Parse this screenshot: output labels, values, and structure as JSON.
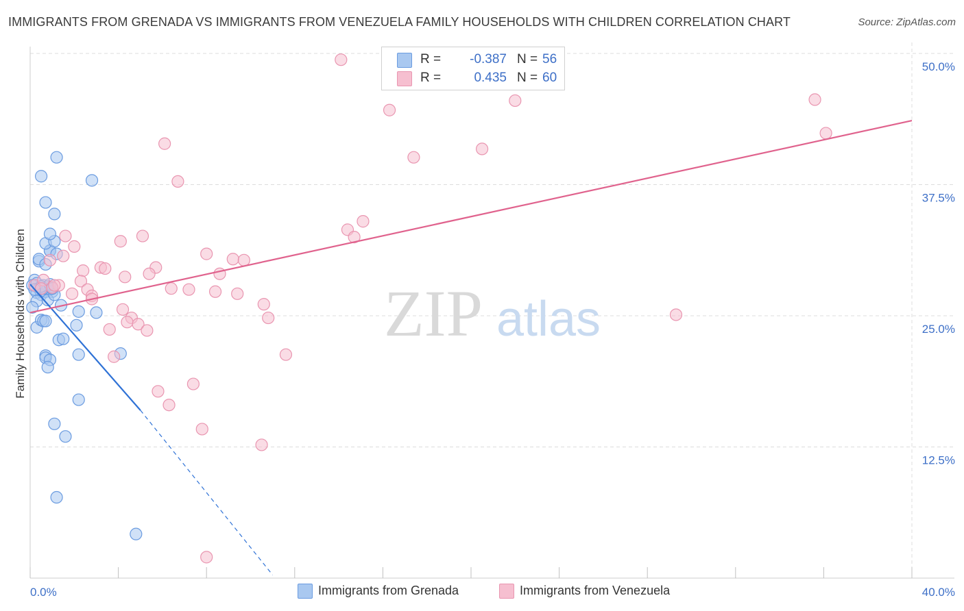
{
  "title": "IMMIGRANTS FROM GRENADA VS IMMIGRANTS FROM VENEZUELA FAMILY HOUSEHOLDS WITH CHILDREN CORRELATION CHART",
  "source": "Source: ZipAtlas.com",
  "watermark": {
    "zip": "ZIP",
    "atlas": "atlas"
  },
  "legend": {
    "r_label": "R =",
    "n_label": "N =",
    "series": [
      {
        "name": "Immigrants from Grenada",
        "r": "-0.387",
        "n": "56",
        "color": "#a9c8f0",
        "stroke": "#6a9be0",
        "line": "#2f72d6"
      },
      {
        "name": "Immigrants from Venezuela",
        "r": "0.435",
        "n": "60",
        "color": "#f6bfd0",
        "stroke": "#e995b0",
        "line": "#e0628d"
      }
    ]
  },
  "colors": {
    "tick_label": "#3d6fc7",
    "grid": "#dcdcdc",
    "axis": "#cccccc"
  },
  "chart_data": {
    "type": "scatter",
    "title": "IMMIGRANTS FROM GRENADA VS IMMIGRANTS FROM VENEZUELA FAMILY HOUSEHOLDS WITH CHILDREN CORRELATION CHART",
    "xlabel": "",
    "ylabel": "Family Households with Children",
    "xlim": [
      0,
      40
    ],
    "ylim": [
      0,
      50
    ],
    "x_tick_labels": [
      {
        "value": 0,
        "label": "0.0%"
      },
      {
        "value": 40,
        "label": "40.0%"
      }
    ],
    "y_tick_labels": [
      {
        "value": 12.5,
        "label": "12.5%"
      },
      {
        "value": 25,
        "label": "25.0%"
      },
      {
        "value": 37.5,
        "label": "37.5%"
      },
      {
        "value": 50,
        "label": "50.0%"
      }
    ],
    "x_minor_ticks": [
      0,
      4,
      8,
      12,
      16,
      20,
      24,
      28,
      32,
      36,
      40
    ],
    "series": [
      {
        "name": "Immigrants from Grenada",
        "points": [
          [
            0.2,
            28.4
          ],
          [
            0.3,
            27.2
          ],
          [
            0.1,
            27.9
          ],
          [
            0.3,
            28.1
          ],
          [
            0.4,
            27.6
          ],
          [
            0.5,
            27.3
          ],
          [
            0.6,
            27.9
          ],
          [
            0.5,
            27.0
          ],
          [
            0.7,
            27.3
          ],
          [
            0.8,
            27.8
          ],
          [
            0.9,
            27.5
          ],
          [
            1.0,
            27.3
          ],
          [
            0.3,
            26.4
          ],
          [
            0.1,
            25.8
          ],
          [
            0.3,
            23.9
          ],
          [
            0.5,
            24.6
          ],
          [
            0.6,
            24.5
          ],
          [
            0.7,
            24.5
          ],
          [
            0.8,
            26.5
          ],
          [
            1.4,
            26.0
          ],
          [
            0.4,
            30.2
          ],
          [
            0.4,
            30.4
          ],
          [
            0.7,
            29.9
          ],
          [
            0.9,
            31.2
          ],
          [
            0.9,
            31.2
          ],
          [
            0.7,
            31.9
          ],
          [
            1.1,
            32.1
          ],
          [
            0.9,
            32.8
          ],
          [
            1.2,
            30.9
          ],
          [
            0.5,
            38.3
          ],
          [
            0.7,
            35.8
          ],
          [
            1.1,
            34.7
          ],
          [
            1.2,
            40.1
          ],
          [
            2.8,
            37.9
          ],
          [
            1.3,
            22.7
          ],
          [
            1.5,
            22.8
          ],
          [
            0.7,
            21.2
          ],
          [
            0.7,
            21.0
          ],
          [
            0.9,
            20.8
          ],
          [
            0.8,
            20.1
          ],
          [
            2.1,
            24.1
          ],
          [
            2.2,
            25.4
          ],
          [
            3.0,
            25.3
          ],
          [
            2.2,
            21.3
          ],
          [
            4.1,
            21.4
          ],
          [
            2.2,
            17.0
          ],
          [
            1.1,
            14.7
          ],
          [
            1.6,
            13.5
          ],
          [
            1.2,
            7.7
          ],
          [
            4.8,
            4.2
          ],
          [
            1.1,
            27.0
          ],
          [
            0.6,
            27.6
          ],
          [
            0.5,
            27.8
          ],
          [
            0.9,
            28.0
          ],
          [
            0.2,
            27.5
          ],
          [
            1.0,
            27.6
          ]
        ]
      },
      {
        "name": "Immigrants from Venezuela",
        "points": [
          [
            14.1,
            49.4
          ],
          [
            16.3,
            44.6
          ],
          [
            17.4,
            40.1
          ],
          [
            20.5,
            40.9
          ],
          [
            22.0,
            45.5
          ],
          [
            35.6,
            45.6
          ],
          [
            36.1,
            42.4
          ],
          [
            6.1,
            41.4
          ],
          [
            6.7,
            37.8
          ],
          [
            15.1,
            34.0
          ],
          [
            14.4,
            33.2
          ],
          [
            14.7,
            32.5
          ],
          [
            1.6,
            32.6
          ],
          [
            2.0,
            31.6
          ],
          [
            1.5,
            30.7
          ],
          [
            0.9,
            30.3
          ],
          [
            5.1,
            32.6
          ],
          [
            4.1,
            32.1
          ],
          [
            8.0,
            30.9
          ],
          [
            9.2,
            30.4
          ],
          [
            9.7,
            30.3
          ],
          [
            3.2,
            29.6
          ],
          [
            3.4,
            29.5
          ],
          [
            2.4,
            29.3
          ],
          [
            5.7,
            29.6
          ],
          [
            5.4,
            29.0
          ],
          [
            8.6,
            29.0
          ],
          [
            4.3,
            28.7
          ],
          [
            2.3,
            28.3
          ],
          [
            1.3,
            27.9
          ],
          [
            1.0,
            27.7
          ],
          [
            0.2,
            27.9
          ],
          [
            2.6,
            27.5
          ],
          [
            6.4,
            27.6
          ],
          [
            7.2,
            27.5
          ],
          [
            8.4,
            27.3
          ],
          [
            9.4,
            27.1
          ],
          [
            2.8,
            26.9
          ],
          [
            1.9,
            27.1
          ],
          [
            2.8,
            26.6
          ],
          [
            4.2,
            25.6
          ],
          [
            4.6,
            24.8
          ],
          [
            4.4,
            24.4
          ],
          [
            3.6,
            23.7
          ],
          [
            4.9,
            24.2
          ],
          [
            5.3,
            23.6
          ],
          [
            10.6,
            26.1
          ],
          [
            10.8,
            24.8
          ],
          [
            11.6,
            21.3
          ],
          [
            29.3,
            25.1
          ],
          [
            3.8,
            21.1
          ],
          [
            5.8,
            17.8
          ],
          [
            6.3,
            16.5
          ],
          [
            7.4,
            18.5
          ],
          [
            7.8,
            14.2
          ],
          [
            10.5,
            12.7
          ],
          [
            8.0,
            2.0
          ],
          [
            0.6,
            28.4
          ],
          [
            1.1,
            27.9
          ],
          [
            0.5,
            27.6
          ]
        ]
      }
    ],
    "trend_lines": [
      {
        "series": "Immigrants from Grenada",
        "x0": 0.0,
        "y0": 28.0,
        "x1": 5.0,
        "y1": 16.0,
        "dashed_to_x": 11.0,
        "dashed_to_y": 0.3
      },
      {
        "series": "Immigrants from Venezuela",
        "x0": 0.0,
        "y0": 25.3,
        "x1": 40.0,
        "y1": 43.6
      }
    ]
  }
}
